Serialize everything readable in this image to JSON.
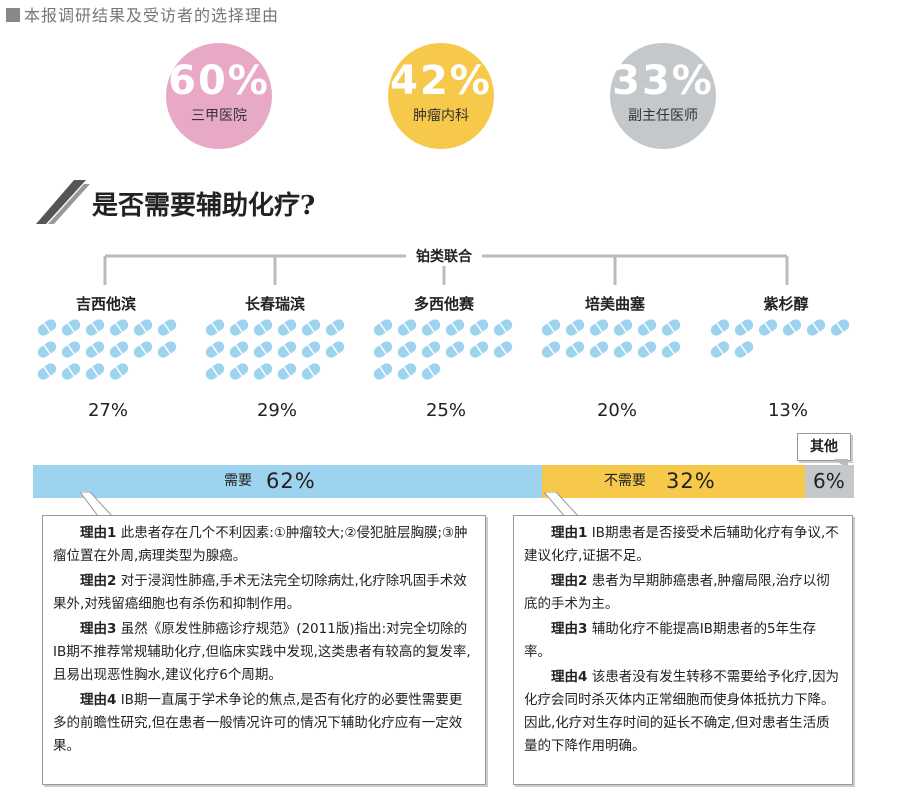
{
  "header": {
    "title": "本报调研结果及受访者的选择理由"
  },
  "stats": [
    {
      "value": "60%",
      "label": "三甲医院",
      "color": "#e8a9c6"
    },
    {
      "value": "42%",
      "label": "肿瘤内科",
      "color": "#f7c94a"
    },
    {
      "value": "33%",
      "label": "副主任医师",
      "color": "#c4c8ca"
    }
  ],
  "section": {
    "title": "是否需要辅助化疗?",
    "group_label": "铂类联合"
  },
  "chart_data": [
    {
      "type": "bar",
      "title": "",
      "categories": [
        "吉西他滨",
        "长春瑞滨",
        "多西他赛",
        "培美曲塞",
        "紫杉醇"
      ],
      "values": [
        27,
        29,
        25,
        20,
        13
      ],
      "labels": [
        "27%",
        "29%",
        "25%",
        "20%",
        "13%"
      ],
      "pill_counts": [
        16,
        17,
        15,
        12,
        8
      ],
      "color": "#9dd3ef"
    },
    {
      "type": "bar",
      "title": "",
      "categories": [
        "需要",
        "不需要",
        "其他"
      ],
      "values": [
        62,
        32,
        6
      ],
      "labels": [
        "62%",
        "32%",
        "6%"
      ],
      "colors": [
        "#9dd3ef",
        "#f7c94a",
        "#c4c8ca"
      ]
    }
  ],
  "reasons_need": [
    {
      "tag": "理由1",
      "text": "此患者存在几个不利因素:①肿瘤较大;②侵犯脏层胸膜;③肿瘤位置在外周,病理类型为腺癌。"
    },
    {
      "tag": "理由2",
      "text": "对于浸润性肺癌,手术无法完全切除病灶,化疗除巩固手术效果外,对残留癌细胞也有杀伤和抑制作用。"
    },
    {
      "tag": "理由3",
      "text": "虽然《原发性肺癌诊疗规范》(2011版)指出:对完全切除的ⅠB期不推荐常规辅助化疗,但临床实践中发现,这类患者有较高的复发率,且易出现恶性胸水,建议化疗6个周期。"
    },
    {
      "tag": "理由4",
      "text": "ⅠB期一直属于学术争论的焦点,是否有化疗的必要性需要更多的前瞻性研究,但在患者一般情况许可的情况下辅助化疗应有一定效果。"
    }
  ],
  "reasons_no_need": [
    {
      "tag": "理由1",
      "text": "ⅠB期患者是否接受术后辅助化疗有争议,不建议化疗,证据不足。"
    },
    {
      "tag": "理由2",
      "text": "患者为早期肺癌患者,肿瘤局限,治疗以彻底的手术为主。"
    },
    {
      "tag": "理由3",
      "text": "辅助化疗不能提高ⅠB期患者的5年生存率。"
    },
    {
      "tag": "理由4",
      "text": "该患者没有发生转移不需要给予化疗,因为化疗会同时杀灭体内正常细胞而使身体抵抗力下降。因此,化疗对生存时间的延长不确定,但对患者生活质量的下降作用明确。"
    }
  ]
}
